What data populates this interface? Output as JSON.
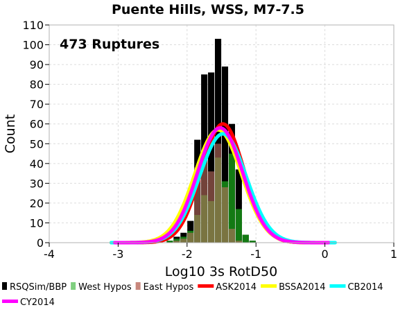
{
  "chart_data": {
    "type": "bar",
    "title": "Puente Hills, WSS, M7-7.5",
    "annotation": "473 Ruptures",
    "xlabel": "Log10 3s RotD50",
    "ylabel": "Count",
    "xlim": [
      -4,
      1
    ],
    "ylim": [
      0,
      110
    ],
    "x_ticks": [
      "-4",
      "-3",
      "-2",
      "-1",
      "0",
      "1"
    ],
    "y_ticks": [
      "0",
      "10",
      "20",
      "30",
      "40",
      "50",
      "60",
      "70",
      "80",
      "90",
      "100",
      "110"
    ],
    "grid": true,
    "legend_position": "bottom",
    "bin_width": 0.1,
    "histograms": [
      {
        "name": "RSQSim/BBP",
        "color": "#000000",
        "opacity": 1,
        "bins": [
          {
            "x0": -2.3,
            "value": 1
          },
          {
            "x0": -2.2,
            "value": 3
          },
          {
            "x0": -2.1,
            "value": 5
          },
          {
            "x0": -2.0,
            "value": 11
          },
          {
            "x0": -1.9,
            "value": 52
          },
          {
            "x0": -1.8,
            "value": 85
          },
          {
            "x0": -1.7,
            "value": 86
          },
          {
            "x0": -1.6,
            "value": 103
          },
          {
            "x0": -1.5,
            "value": 89
          },
          {
            "x0": -1.4,
            "value": 60
          },
          {
            "x0": -1.3,
            "value": 37
          },
          {
            "x0": -1.2,
            "value": 4
          },
          {
            "x0": -1.1,
            "value": 1
          }
        ]
      },
      {
        "name": "West Hypos",
        "color": "#1aa31a",
        "opacity": 0.75,
        "bins": [
          {
            "x0": -2.3,
            "value": 1
          },
          {
            "x0": -2.2,
            "value": 2
          },
          {
            "x0": -2.1,
            "value": 3
          },
          {
            "x0": -2.0,
            "value": 6
          },
          {
            "x0": -1.9,
            "value": 14
          },
          {
            "x0": -1.8,
            "value": 24
          },
          {
            "x0": -1.7,
            "value": 21
          },
          {
            "x0": -1.6,
            "value": 43
          },
          {
            "x0": -1.5,
            "value": 31
          },
          {
            "x0": -1.4,
            "value": 45
          },
          {
            "x0": -1.3,
            "value": 17
          },
          {
            "x0": -1.2,
            "value": 4
          },
          {
            "x0": -1.1,
            "value": 1
          }
        ]
      },
      {
        "name": "East Hypos",
        "color": "#c07060",
        "opacity": 0.6,
        "bins": [
          {
            "x0": -2.2,
            "value": 1
          },
          {
            "x0": -2.1,
            "value": 2
          },
          {
            "x0": -2.0,
            "value": 5
          },
          {
            "x0": -1.9,
            "value": 38
          },
          {
            "x0": -1.8,
            "value": 45
          },
          {
            "x0": -1.7,
            "value": 36
          },
          {
            "x0": -1.6,
            "value": 50
          },
          {
            "x0": -1.5,
            "value": 28
          },
          {
            "x0": -1.4,
            "value": 7
          },
          {
            "x0": -1.3,
            "value": 1
          }
        ]
      }
    ],
    "curves": [
      {
        "name": "ASK2014",
        "color": "#ff0000",
        "mean": -1.48,
        "sd": 0.31,
        "peak": 60,
        "x_min": -3.1,
        "x_max": 0.1
      },
      {
        "name": "BSSA2014",
        "color": "#ffff00",
        "mean": -1.55,
        "sd": 0.34,
        "peak": 57,
        "x_min": -3.1,
        "x_max": 0.1
      },
      {
        "name": "CB2014",
        "color": "#00ffff",
        "mean": -1.48,
        "sd": 0.34,
        "peak": 55,
        "x_min": -3.1,
        "x_max": 0.15
      },
      {
        "name": "CY2014",
        "color": "#ff00ff",
        "mean": -1.52,
        "sd": 0.33,
        "peak": 58,
        "x_min": -3.05,
        "x_max": 0.05
      }
    ],
    "legend": [
      {
        "label": "RSQSim/BBP",
        "kind": "box",
        "color": "#000000"
      },
      {
        "label": "West Hypos",
        "kind": "box",
        "color": "#7fcf7f"
      },
      {
        "label": "East Hypos",
        "kind": "box",
        "color": "#c8877c"
      },
      {
        "label": "ASK2014",
        "kind": "line",
        "color": "#ff0000"
      },
      {
        "label": "BSSA2014",
        "kind": "line",
        "color": "#ffff00"
      },
      {
        "label": "CB2014",
        "kind": "line",
        "color": "#00ffff"
      },
      {
        "label": "CY2014",
        "kind": "line",
        "color": "#ff00ff"
      }
    ]
  }
}
